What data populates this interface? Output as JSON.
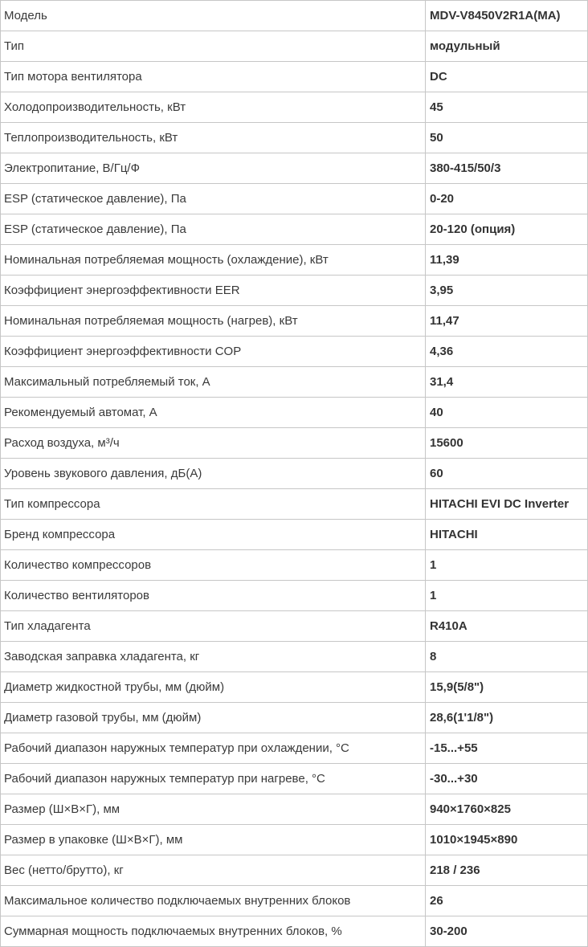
{
  "rows": [
    {
      "label": "Модель",
      "value": "MDV-V8450V2R1A(MA)"
    },
    {
      "label": "Тип",
      "value": "модульный"
    },
    {
      "label": "Тип мотора вентилятора",
      "value": "DC"
    },
    {
      "label": "Холодопроизводительность, кВт",
      "value": "45"
    },
    {
      "label": "Теплопроизводительность, кВт",
      "value": "50"
    },
    {
      "label": "Электропитание, В/Гц/Ф",
      "value": "380-415/50/3"
    },
    {
      "label": "ESP (статическое давление), Па",
      "value": "0-20"
    },
    {
      "label": "ESP (статическое давление), Па",
      "value": "20-120 (опция)"
    },
    {
      "label": "Номинальная потребляемая мощность (охлаждение), кВт",
      "value": "11,39"
    },
    {
      "label": "Коэффициент энергоэффективности EER",
      "value": "3,95"
    },
    {
      "label": "Номинальная потребляемая мощность (нагрев), кВт",
      "value": "11,47"
    },
    {
      "label": "Коэффициент энергоэффективности COP",
      "value": "4,36"
    },
    {
      "label": "Максимальный потребляемый ток, А",
      "value": "31,4"
    },
    {
      "label": "Рекомендуемый автомат, А",
      "value": "40"
    },
    {
      "label": "Расход воздуха, м³/ч",
      "value": "15600"
    },
    {
      "label": "Уровень звукового давления, дБ(А)",
      "value": "60"
    },
    {
      "label": "Тип компрессора",
      "value": "HITACHI EVI DC Inverter"
    },
    {
      "label": "Бренд компрессора",
      "value": "HITACHI"
    },
    {
      "label": "Количество компрессоров",
      "value": "1"
    },
    {
      "label": "Количество вентиляторов",
      "value": "1"
    },
    {
      "label": "Тип хладагента",
      "value": "R410A"
    },
    {
      "label": "Заводская заправка хладагента, кг",
      "value": "8"
    },
    {
      "label": "Диаметр жидкостной трубы, мм (дюйм)",
      "value": "15,9(5/8\")"
    },
    {
      "label": "Диаметр газовой трубы, мм (дюйм)",
      "value": "28,6(1'1/8\")"
    },
    {
      "label": "Рабочий диапазон наружных температур при охлаждении, °С",
      "value": "-15...+55"
    },
    {
      "label": "Рабочий диапазон наружных температур при нагреве, °С",
      "value": "-30...+30"
    },
    {
      "label": "Размер (Ш×В×Г), мм",
      "value": "940×1760×825"
    },
    {
      "label": "Размер в упаковке (Ш×В×Г), мм",
      "value": "1010×1945×890"
    },
    {
      "label": "Вес (нетто/брутто), кг",
      "value": "218 / 236"
    },
    {
      "label": "Максимальное количество подключаемых внутренних блоков",
      "value": "26"
    },
    {
      "label": "Суммарная мощность подключаемых внутренних блоков, %",
      "value": "30-200"
    }
  ]
}
